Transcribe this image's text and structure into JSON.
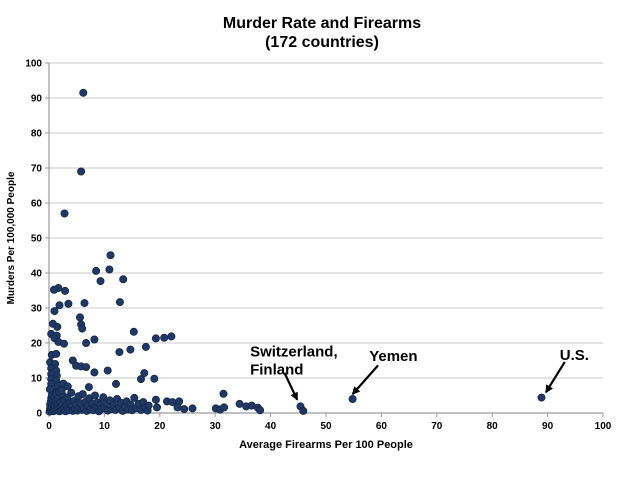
{
  "chart_data": {
    "type": "scatter",
    "title": "Murder Rate and Firearms",
    "subtitle": "(172 countries)",
    "xlabel": "Average Firearms Per 100 People",
    "ylabel": "Murders Per 100,000 People",
    "xlim": [
      0,
      100
    ],
    "ylim": [
      0,
      100
    ],
    "xticks": [
      0,
      10,
      20,
      30,
      40,
      50,
      60,
      70,
      80,
      90,
      100
    ],
    "yticks": [
      0,
      10,
      20,
      30,
      40,
      50,
      60,
      70,
      80,
      90,
      100
    ],
    "grid": "horizontal",
    "legend": "none",
    "colors": {
      "point_fill": "#1F3864",
      "point_stroke": "#14284B",
      "gridline": "#C9C9C9",
      "axis": "#9A9A9A",
      "text": "#000000"
    },
    "points": [
      [
        6.2,
        91.5
      ],
      [
        5.8,
        69
      ],
      [
        2.8,
        57
      ],
      [
        11.1,
        45.1
      ],
      [
        8.5,
        40.6
      ],
      [
        10.9,
        41
      ],
      [
        9.3,
        37.7
      ],
      [
        13.4,
        38.2
      ],
      [
        1.7,
        35.7
      ],
      [
        0.9,
        35.2
      ],
      [
        2.9,
        34.9
      ],
      [
        6.4,
        31.4
      ],
      [
        12.8,
        31.7
      ],
      [
        1.9,
        30.8
      ],
      [
        3.5,
        31.2
      ],
      [
        1,
        29.1
      ],
      [
        5.6,
        27.3
      ],
      [
        0.7,
        25.5
      ],
      [
        1.5,
        24.6
      ],
      [
        5.8,
        25.3
      ],
      [
        6,
        24.1
      ],
      [
        15.3,
        23.2
      ],
      [
        0.4,
        22.6
      ],
      [
        1.4,
        22.1
      ],
      [
        1,
        21.4
      ],
      [
        1.7,
        20.3
      ],
      [
        2.7,
        19.8
      ],
      [
        6.7,
        20
      ],
      [
        8.2,
        21
      ],
      [
        19.3,
        21.3
      ],
      [
        20.8,
        21.5
      ],
      [
        22.1,
        21.9
      ],
      [
        17.5,
        18.9
      ],
      [
        14.7,
        18.1
      ],
      [
        12.7,
        17.4
      ],
      [
        0.5,
        16.6
      ],
      [
        1.3,
        16.9
      ],
      [
        0.2,
        14.5
      ],
      [
        1.1,
        14
      ],
      [
        4.3,
        15
      ],
      [
        0.4,
        12.8
      ],
      [
        1.3,
        12.1
      ],
      [
        4.9,
        13.5
      ],
      [
        5.8,
        13.3
      ],
      [
        6.7,
        13.1
      ],
      [
        8.2,
        11.6
      ],
      [
        10.6,
        12.1
      ],
      [
        0.4,
        11.1
      ],
      [
        1.4,
        10.7
      ],
      [
        17.2,
        11.4
      ],
      [
        19,
        9.8
      ],
      [
        16.6,
        9.7
      ],
      [
        0.4,
        9.7
      ],
      [
        1.3,
        9.3
      ],
      [
        12.1,
        8.3
      ],
      [
        0.4,
        8.3
      ],
      [
        1.6,
        7.8
      ],
      [
        2.6,
        8.4
      ],
      [
        3.4,
        7.6
      ],
      [
        7.2,
        7.4
      ],
      [
        0.1,
        0.4
      ],
      [
        0.2,
        1.2
      ],
      [
        0.2,
        2.3
      ],
      [
        0.3,
        3.1
      ],
      [
        0.3,
        0.8
      ],
      [
        0.4,
        4.2
      ],
      [
        0.5,
        1.6
      ],
      [
        0.5,
        5.1
      ],
      [
        0.6,
        0.5
      ],
      [
        0.6,
        2.8
      ],
      [
        0.7,
        3.8
      ],
      [
        0.8,
        1
      ],
      [
        0.8,
        6.2
      ],
      [
        0.9,
        2
      ],
      [
        1,
        0.6
      ],
      [
        1,
        4.6
      ],
      [
        1.1,
        1.5
      ],
      [
        1.2,
        3.3
      ],
      [
        1.3,
        5.6
      ],
      [
        1.4,
        0.9
      ],
      [
        1.5,
        2.5
      ],
      [
        1.6,
        4
      ],
      [
        1.7,
        1.2
      ],
      [
        1.8,
        6
      ],
      [
        1.9,
        0.5
      ],
      [
        2,
        3
      ],
      [
        2.1,
        1.8
      ],
      [
        2.2,
        0.7
      ],
      [
        2.4,
        2.6
      ],
      [
        2.5,
        5
      ],
      [
        2.6,
        1.1
      ],
      [
        2.8,
        3.6
      ],
      [
        3,
        0.5
      ],
      [
        3.1,
        2.2
      ],
      [
        3.3,
        4.4
      ],
      [
        3.4,
        1.4
      ],
      [
        3.6,
        0.8
      ],
      [
        3.8,
        2.9
      ],
      [
        4,
        5.8
      ],
      [
        4.1,
        1.9
      ],
      [
        4.3,
        0.6
      ],
      [
        4.5,
        3.4
      ],
      [
        4.7,
        1.1
      ],
      [
        4.9,
        2.4
      ],
      [
        5.1,
        0.7
      ],
      [
        5.3,
        4.8
      ],
      [
        5.4,
        1.6
      ],
      [
        5.7,
        2.8
      ],
      [
        5.9,
        0.9
      ],
      [
        6.1,
        5.4
      ],
      [
        6.3,
        1.3
      ],
      [
        6.6,
        3.2
      ],
      [
        6.8,
        0.6
      ],
      [
        7,
        2.1
      ],
      [
        7.3,
        4.2
      ],
      [
        7.5,
        1
      ],
      [
        7.8,
        2.7
      ],
      [
        8,
        0.8
      ],
      [
        8.3,
        5
      ],
      [
        8.5,
        1.8
      ],
      [
        8.8,
        3
      ],
      [
        9,
        0.5
      ],
      [
        9.3,
        2.3
      ],
      [
        9.5,
        1.2
      ],
      [
        9.8,
        4.5
      ],
      [
        10,
        1.5
      ],
      [
        10.3,
        2.8
      ],
      [
        10.6,
        0.7
      ],
      [
        11,
        3.6
      ],
      [
        11.3,
        1.1
      ],
      [
        11.6,
        2.2
      ],
      [
        12,
        0.9
      ],
      [
        12.3,
        4
      ],
      [
        12.6,
        1.7
      ],
      [
        13,
        2.9
      ],
      [
        13.3,
        0.6
      ],
      [
        13.7,
        1.9
      ],
      [
        14,
        3.3
      ],
      [
        14.3,
        1
      ],
      [
        14.7,
        2.4
      ],
      [
        15,
        0.8
      ],
      [
        15.4,
        4.3
      ],
      [
        15.8,
        1.4
      ],
      [
        16.2,
        2.6
      ],
      [
        16.6,
        0.9
      ],
      [
        17,
        3.1
      ],
      [
        17.4,
        1.6
      ],
      [
        17.8,
        0.7
      ],
      [
        18,
        2.1
      ],
      [
        19.3,
        3.8
      ],
      [
        19.5,
        1.6
      ],
      [
        21.3,
        3.3
      ],
      [
        22.3,
        3.1
      ],
      [
        23.2,
        1.6
      ],
      [
        23.5,
        3.3
      ],
      [
        24.4,
        1.1
      ],
      [
        25.9,
        1.3
      ],
      [
        30.1,
        1.3
      ],
      [
        30.9,
        1
      ],
      [
        31.6,
        1.6
      ],
      [
        31.5,
        5.5
      ],
      [
        34.4,
        2.6
      ],
      [
        35.6,
        1.9
      ],
      [
        36.6,
        2.1
      ],
      [
        37.7,
        1.5
      ],
      [
        38.1,
        0.8
      ],
      [
        45.4,
        1.9
      ],
      [
        45.9,
        0.6
      ],
      [
        54.8,
        4
      ],
      [
        88.9,
        4.4
      ],
      [
        0.15,
        6.8
      ],
      [
        2.3,
        6.5
      ]
    ],
    "annotations": [
      {
        "id": "switzerland-finland",
        "lines": [
          "Switzerland,",
          "Finland"
        ],
        "label_pos": [
          36.3,
          16.2
        ],
        "arrow": {
          "from": [
            42.5,
            11.5
          ],
          "to": [
            44.8,
            3.8
          ]
        }
      },
      {
        "id": "yemen",
        "lines": [
          "Yemen"
        ],
        "label_pos": [
          57.8,
          14.9
        ],
        "arrow": {
          "from": [
            59.4,
            13.6
          ],
          "to": [
            54.8,
            5.4
          ]
        }
      },
      {
        "id": "us",
        "lines": [
          "U.S."
        ],
        "label_pos": [
          92.2,
          15.2
        ],
        "arrow": {
          "from": [
            93.1,
            14.6
          ],
          "to": [
            89.7,
            5.9
          ]
        }
      }
    ]
  }
}
